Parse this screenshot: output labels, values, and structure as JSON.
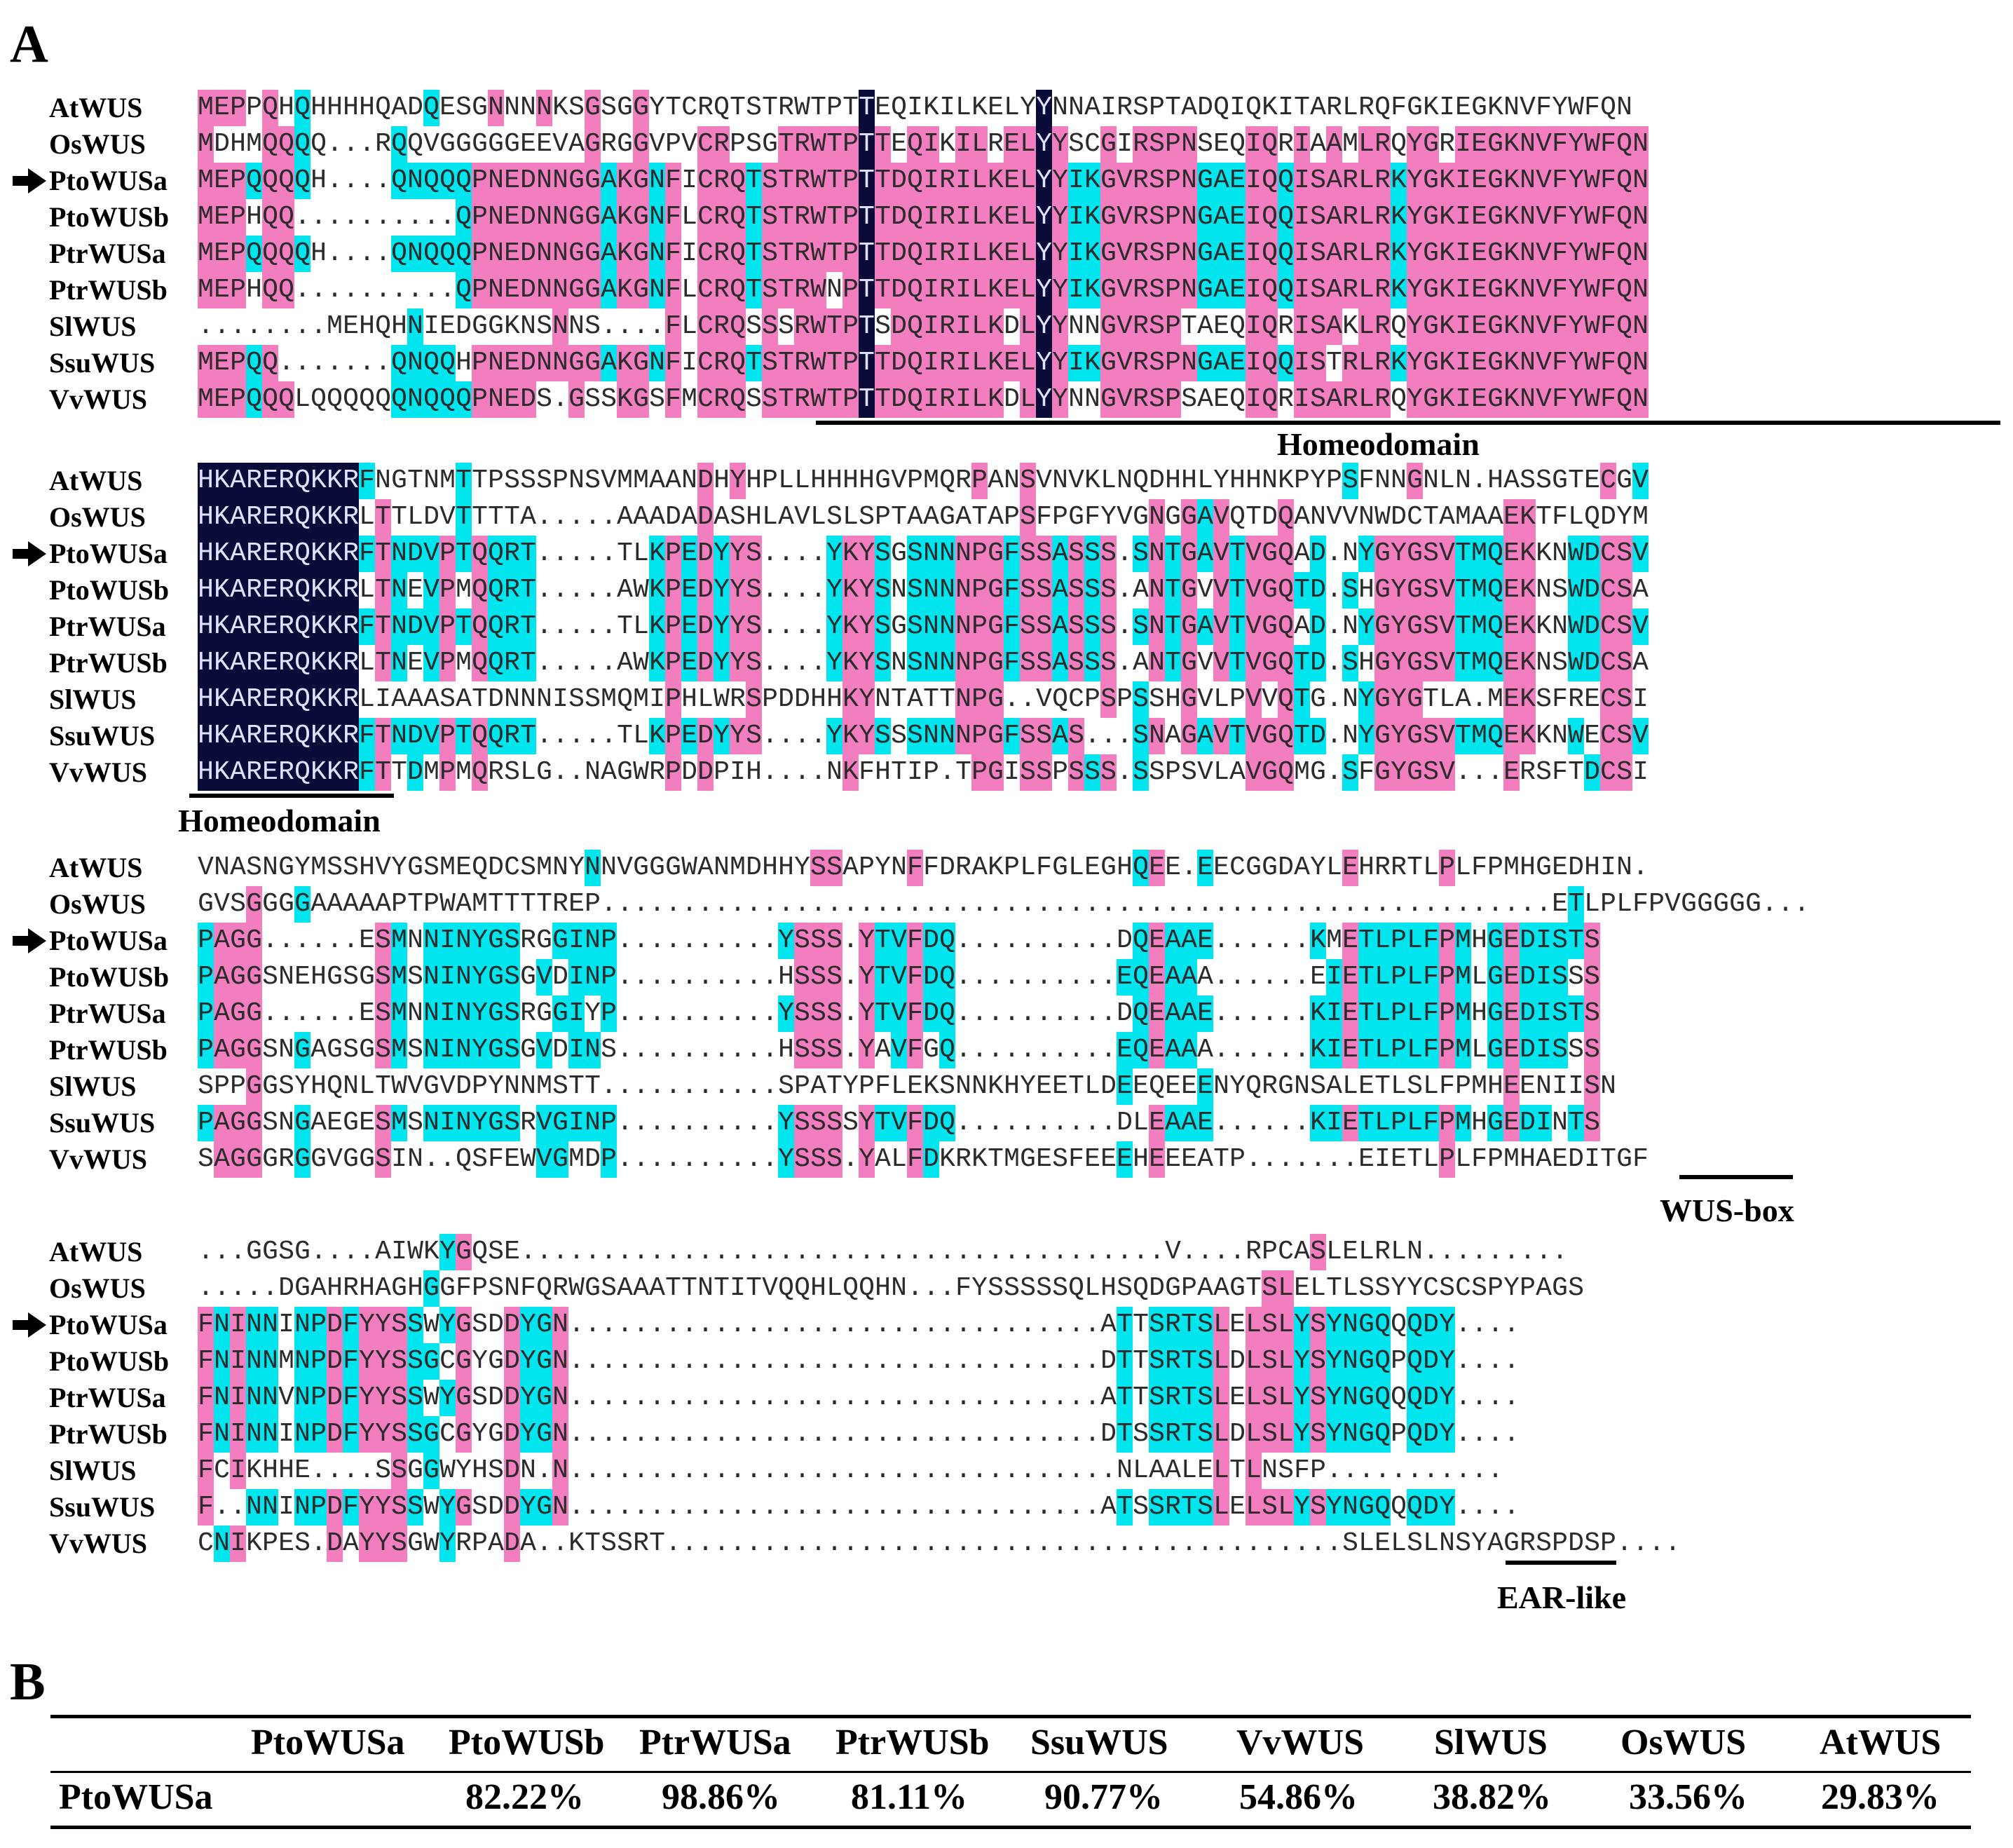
{
  "panel_a_label": "A",
  "panel_b_label": "B",
  "blocks": [
    {
      "rows": [
        {
          "name": "AtWUS",
          "seq": "MEPPQHQHHHHQADQESGNNNNKSGSGGYTCRQTSTRWTPTTEQIKILKELYYNNAIRSPTADQIQKITARLRQFGKIEGKNVFYWFQN",
          "arrow": false
        },
        {
          "name": "OsWUS",
          "seq": "MDHMQQQQ...RQQVGGGGGEEVAGRGGVPVCRPSGTRWTPTTEQIKILRELYYSCGIRSPNSEQIQRIAAMLRQYGRIEGKNVFYWFQN",
          "arrow": false
        },
        {
          "name": "PtoWUSa",
          "seq": "MEPQQQQH....QNQQQPNEDNNGGAKGNFICRQTSTRWTPTTDQIRILKELYYIKGVRSPNGAEIQQISARLRKYGKIEGKNVFYWFQN",
          "arrow": true
        },
        {
          "name": "PtoWUSb",
          "seq": "MEPHQQ..........QPNEDNNGGAKGNFLCRQTSTRWTPTTDQIRILKELYYIKGVRSPNGAEIQQISARLRKYGKIEGKNVFYWFQN",
          "arrow": false
        },
        {
          "name": "PtrWUSa",
          "seq": "MEPQQQQH....QNQQQPNEDNNGGAKGNFICRQTSTRWTPTTDQIRILKELYYIKGVRSPNGAEIQQISARLRKYGKIEGKNVFYWFQN",
          "arrow": false
        },
        {
          "name": "PtrWUSb",
          "seq": "MEPHQQ..........QPNEDNNGGAKGNFLCRQTSTRWNPTTDQIRILKELYYIKGVRSPNGAEIQQISARLRKYGKIEGKNVFYWFQN",
          "arrow": false
        },
        {
          "name": "SlWUS",
          "seq": "........MEHQHNIEDGGKNSNNS....FLCRQSSSRWTPTSDQIRILKDLYYNNGVRSPTAEQIQRISAKLRQYGKIEGKNVFYWFQN",
          "arrow": false
        },
        {
          "name": "SsuWUS",
          "seq": "MEPQQ.......QNQQHPNEDNNGGAKGNFICRQTSTRWTPTTDQIRILKELYYIKGVRSPNGAEIQQISTRLRKYGKIEGKNVFYWFQN",
          "arrow": false
        },
        {
          "name": "VvWUS",
          "seq": "MEPQQQLQQQQQQNQQQPNEDS.GSSKGSFMCRQSSTRWTPTTDQIRILKDLYYNNGVRSPSAEQIQRISARLRQYGKIEGKNVFYWFQN",
          "arrow": false
        }
      ],
      "domain_label": "Homeodomain"
    },
    {
      "rows": [
        {
          "name": "AtWUS",
          "seq": "HKARERQKKRFNGTNMTTPSSSPNSVMMAANDHYHPLLHHHHGVPMQRPANSVNVKLNQDHHLYHHNKPYPSFNNGNLN.HASSGTECGV",
          "arrow": false
        },
        {
          "name": "OsWUS",
          "seq": "HKARERQKKRLTTLDVTTTTA.....AAADADASHLAVLSLSPTAAGATAPSFPGFYVGNGGAVQTDQANVVNWDCTAMAAEKTFLQDYM",
          "arrow": false
        },
        {
          "name": "PtoWUSa",
          "seq": "HKARERQKKRFTNDVPTQQRT.....TLKPEDYYS....YKYSGSNNNPGFSSASSS.SNTGAVTVGQAD.NYGYGSVTMQEKKNWDCSV",
          "arrow": true
        },
        {
          "name": "PtoWUSb",
          "seq": "HKARERQKKRLTNEVPMQQRT.....AWKPEDYYS....YKYSNSNNNPGFSSASSS.ANTGVVTVGQTD.SHGYGSVTMQEKNSWDCSA",
          "arrow": false
        },
        {
          "name": "PtrWUSa",
          "seq": "HKARERQKKRFTNDVPTQQRT.....TLKPEDYYS....YKYSGSNNNPGFSSASSS.SNTGAVTVGQAD.NYGYGSVTMQEKKNWDCSV",
          "arrow": false
        },
        {
          "name": "PtrWUSb",
          "seq": "HKARERQKKRLTNEVPMQQRT.....AWKPEDYYS....YKYSNSNNNPGFSSASSS.ANTGVVTVGQTD.SHGYGSVTMQEKNSWDCSA",
          "arrow": false
        },
        {
          "name": "SlWUS",
          "seq": "HKARERQKKRLIAAASATDNNNISSMQMIPHLWRSPDDHHKYNTATTNPG..VQCPSPSSHGVLPVVQTG.NYGYGTLA.MEKSFRECSI",
          "arrow": false
        },
        {
          "name": "SsuWUS",
          "seq": "HKARERQKKRFTNDVPTQQRT.....TLKPEDYYS....YKYSSSNNNPGFSSAS...SNAGAVTVGQTD.NYGYGSVTMQEKKNWECSV",
          "arrow": false
        },
        {
          "name": "VvWUS",
          "seq": "HKARERQKKRFTTDMPMQRSLG..NAGWRPDDPIH....NKFHTIP.TPGISSPSSS.SSPSVLAVGQMG.SFGYGSV...ERSFTDCSI",
          "arrow": false
        }
      ],
      "domain_label": "Homeodomain"
    },
    {
      "rows": [
        {
          "name": "AtWUS",
          "seq": "VNASNGYMSSHVYGSMEQDCSMNYNNVGGGWANMDHHYSSAPYNFFDRAKPLFGLEGHQEE.EECGGDAYLEHRRTLPLFPMHGEDHIN.",
          "arrow": false
        },
        {
          "name": "OsWUS",
          "seq": "GVSGGGGAAAAAPTPWAMTTTTREP...........................................................ETLPLFPVGGGGG...",
          "arrow": false
        },
        {
          "name": "PtoWUSa",
          "seq": "PAGG......ESMNNINYGSRGGINP..........YSSS.YTVFDQ..........DQEAAE......KMETLPLFPMHGEDISTS",
          "arrow": true
        },
        {
          "name": "PtoWUSb",
          "seq": "PAGGSNEHGSGSMSNINYGSGVDINP..........HSSS.YTVFDQ..........EQEAAA......EIETLPLFPMLGEDISSS",
          "arrow": false
        },
        {
          "name": "PtrWUSa",
          "seq": "PAGG......ESMNNINYGSRGGIYP..........YSSS.YTVFDQ..........DQEAAE......KIETLPLFPMHGEDISTS",
          "arrow": false
        },
        {
          "name": "PtrWUSb",
          "seq": "PAGGSNGAGSGSMSNINYGSGVDINS..........HSSS.YAVFGQ..........EQEAAA......KIETLPLFPMLGEDISSS",
          "arrow": false
        },
        {
          "name": "SlWUS",
          "seq": "SPPGGSYHQNLTWVGVDPYNNMSTT...........SPATYPFLEKSNNKHYEETLDEEQEEENYQRGNSALETLSLFPMHEENIISN",
          "arrow": false
        },
        {
          "name": "SsuWUS",
          "seq": "PAGGSNGAEGESMSNINYGSRVGINP..........YSSSSYTVFDQ..........DLEAAE......KIETLPLFPMHGEDINTS",
          "arrow": false
        },
        {
          "name": "VvWUS",
          "seq": "SAGGGRGGVGGSIN..QSFEWVGMDP..........YSSS.YALFDKRKTMGESFEEEHEEEATP.......EIETLPLFPMHAEDITGF",
          "arrow": false
        }
      ],
      "domain_label": "WUS-box"
    },
    {
      "rows": [
        {
          "name": "AtWUS",
          "seq": "...GGSG....AIWKYGQSE........................................V....RPCASLELRLN.........",
          "arrow": false
        },
        {
          "name": "OsWUS",
          "seq": ".....DGAHRHAGHGGFPSNFQRWGSAAATTNTITVQQHLQQHN...FYSSSSSQLHSQDGPAAGTSLELTLSSYYCSCSPYPAGS",
          "arrow": false
        },
        {
          "name": "PtoWUSa",
          "seq": "FNINNINPDFYYSSWYGSDDYGN.................................ATTSRTSLELSLYSYNGQQQDY....",
          "arrow": true
        },
        {
          "name": "PtoWUSb",
          "seq": "FNINNMNPDFYYSSGCGYGDYGN.................................DTTSRTSLDLSLYSYNGQPQDY....",
          "arrow": false
        },
        {
          "name": "PtrWUSa",
          "seq": "FNINNVNPDFYYSSWYGSDDYGN.................................ATTSRTSLELSLYSYNGQQQDY....",
          "arrow": false
        },
        {
          "name": "PtrWUSb",
          "seq": "FNINNINPDFYYSSGCGYGDYGN.................................DTSSRTSLDLSLYSYNGQPQDY....",
          "arrow": false
        },
        {
          "name": "SlWUS",
          "seq": "FCIKHHE....SSGGWYHSDN.N..................................NLAALELTLNSFP...........",
          "arrow": false
        },
        {
          "name": "SsuWUS",
          "seq": "F..NNINPDFYYSSWYGSDDYGN.................................ATSSRTSLELSLYSYNGQQQDY....",
          "arrow": false
        },
        {
          "name": "VvWUS",
          "seq": "CNIKPES.DAYYSGWYRPADA..KTSSRT..........................................SLELSLNSYAGRSPDSP....",
          "arrow": false
        }
      ],
      "domain_label": "EAR-like"
    }
  ],
  "identity_table": {
    "columns": [
      "PtoWUSa",
      "PtoWUSb",
      "PtrWUSa",
      "PtrWUSb",
      "SsuWUS",
      "VvWUS",
      "SlWUS",
      "OsWUS",
      "AtWUS"
    ],
    "row_label": "PtoWUSa",
    "values": [
      "82.22%",
      "98.86%",
      "81.11%",
      "90.77%",
      "54.86%",
      "38.82%",
      "33.56%",
      "29.83%"
    ]
  },
  "colors": {
    "cyan": "#00e5ee",
    "magenta": "#f27ebf",
    "navy": "#0b0b3a"
  }
}
